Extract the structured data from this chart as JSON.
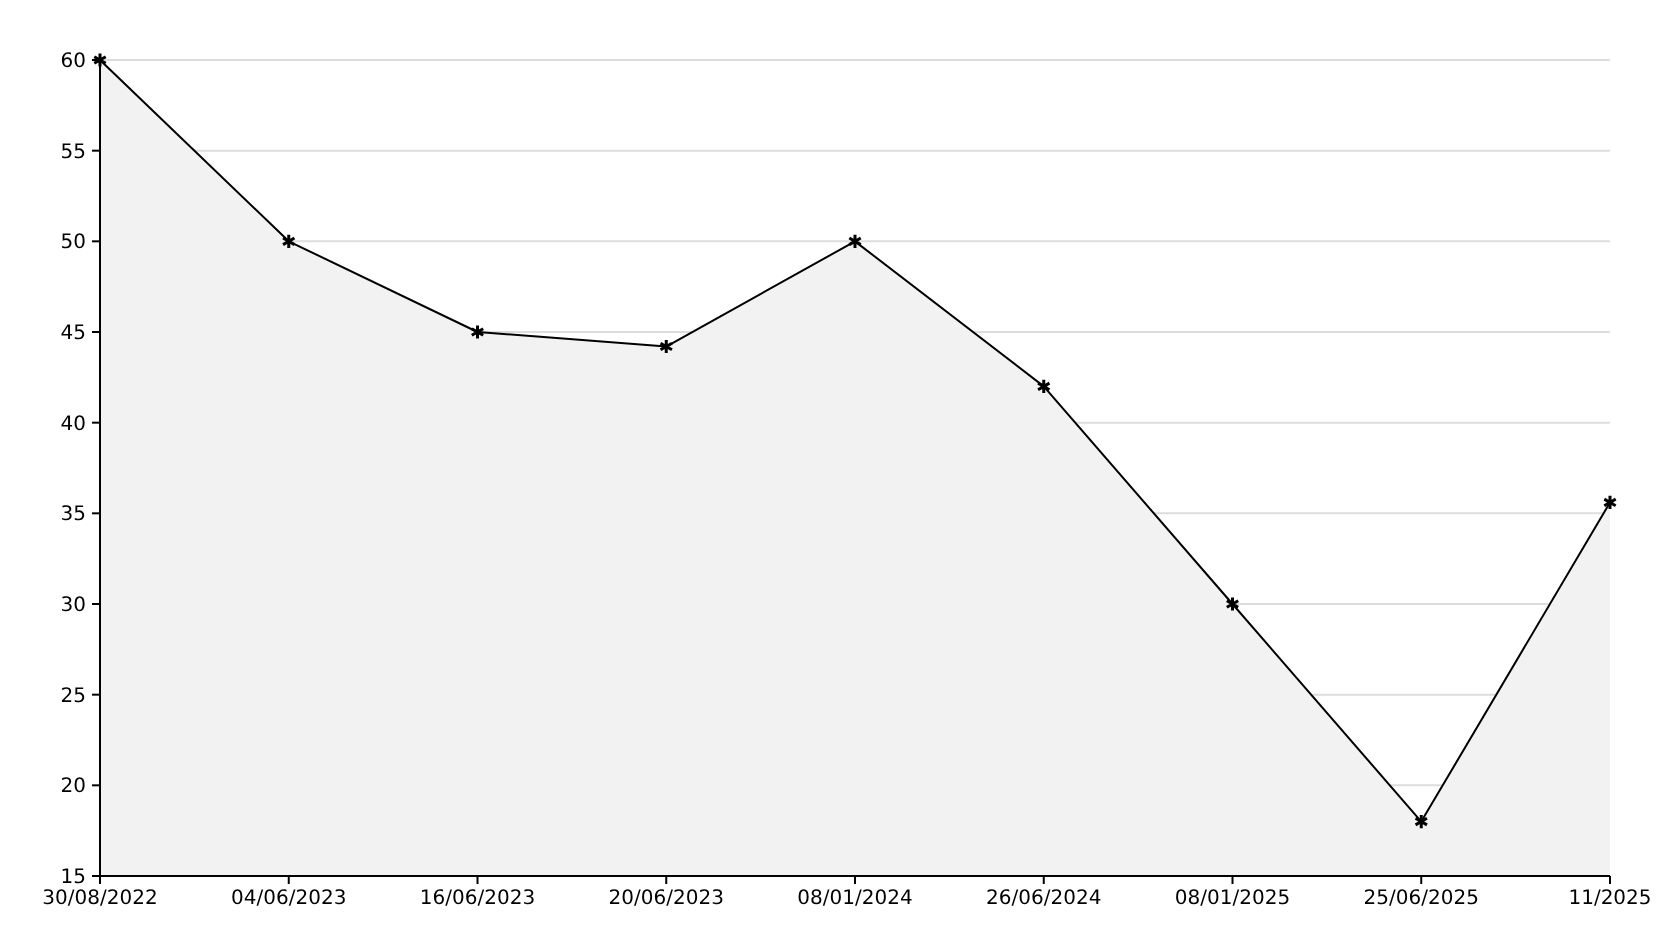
{
  "chart_data": {
    "type": "area",
    "categories": [
      "30/08/2022",
      "04/06/2023",
      "16/06/2023",
      "20/06/2023",
      "08/01/2024",
      "26/06/2024",
      "08/01/2025",
      "25/06/2025",
      "11/2025"
    ],
    "series": [
      {
        "color": "#000000",
        "values": [
          60,
          50,
          45,
          44.2,
          50,
          42,
          30,
          18,
          35.6
        ]
      }
    ],
    "ylim": [
      15,
      60
    ],
    "yticks": [
      15,
      20,
      25,
      30,
      35,
      40,
      45,
      50,
      55,
      60
    ],
    "grid": "y",
    "marker": "cross",
    "line_style": "solid"
  }
}
